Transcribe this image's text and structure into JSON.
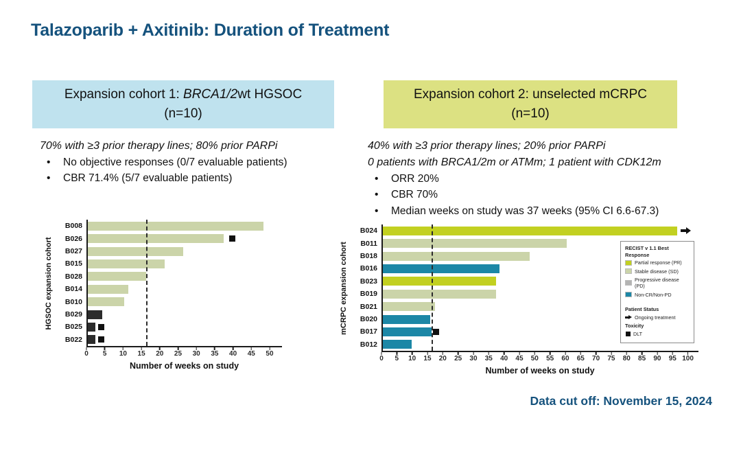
{
  "title": "Talazoparib + Axitinib: Duration of Treatment",
  "footer": "Data cut off: November 15, 2024",
  "colors": {
    "accent_blue": "#15527D",
    "cohort1_header_bg": "#BFE2EE",
    "cohort2_header_bg": "#DCE182",
    "partial_response": "#C2D021",
    "stable_disease": "#CBD4A9",
    "progressive_disease": "#B4B4B3",
    "non_cr_non_pd": "#1C87A6",
    "dark_bar": "#2C2C2C",
    "dlt_marker": "#111111"
  },
  "cohort1": {
    "header_prefix": "Expansion cohort 1: ",
    "header_italic": "BRCA1/2",
    "header_suffix": "wt HGSOC",
    "header_n": "(n=10)",
    "subtitle": "70% with ≥3 prior therapy lines; 80% prior PARPi",
    "bullet_glyph": "•",
    "bullets": [
      "No objective responses (0/7 evaluable patients)",
      "CBR 71.4% (5/7 evaluable patients)"
    ]
  },
  "cohort2": {
    "header_line1": "Expansion cohort 2: unselected mCRPC",
    "header_n": "(n=10)",
    "subtitle_lines": [
      "40% with ≥3 prior therapy lines; 20% prior PARPi",
      "0 patients with BRCA1/2m or ATMm; 1 patient with CDK12m"
    ],
    "bullet_glyph": "•",
    "bullets": [
      "ORR 20%",
      "CBR 70%",
      "Median weeks on study was 37 weeks (95% CI 6.6-67.3)"
    ]
  },
  "chart_data": [
    {
      "type": "bar",
      "orientation": "horizontal",
      "ylabel": "HGSOC expansion cohort",
      "xlabel": "Number of weeks on study",
      "xlim": [
        0,
        53
      ],
      "xticks": [
        0,
        5,
        10,
        15,
        20,
        25,
        30,
        35,
        40,
        45,
        50
      ],
      "reference_line_x": 16,
      "grid": false,
      "rows": [
        {
          "patient": "B008",
          "weeks": 48,
          "color": "stable_disease"
        },
        {
          "patient": "B026",
          "weeks": 37,
          "color": "stable_disease",
          "dlt_at": 39.5
        },
        {
          "patient": "B027",
          "weeks": 26,
          "color": "stable_disease"
        },
        {
          "patient": "B015",
          "weeks": 21,
          "color": "stable_disease"
        },
        {
          "patient": "B028",
          "weeks": 16,
          "color": "stable_disease"
        },
        {
          "patient": "B014",
          "weeks": 11,
          "color": "stable_disease"
        },
        {
          "patient": "B010",
          "weeks": 10,
          "color": "stable_disease"
        },
        {
          "patient": "B029",
          "weeks": 4,
          "color": "dark_bar"
        },
        {
          "patient": "B025",
          "weeks": 2,
          "color": "dark_bar",
          "dlt_at": 3.6
        },
        {
          "patient": "B022",
          "weeks": 2,
          "color": "dark_bar",
          "dlt_at": 3.6
        }
      ]
    },
    {
      "type": "bar",
      "orientation": "horizontal",
      "ylabel": "mCRPC expansion cohort",
      "xlabel": "Number of weeks on study",
      "xlim": [
        0,
        103
      ],
      "xticks": [
        0,
        5,
        10,
        15,
        20,
        25,
        30,
        35,
        40,
        45,
        50,
        55,
        60,
        65,
        70,
        75,
        80,
        85,
        90,
        95,
        100
      ],
      "reference_line_x": 16,
      "grid": false,
      "rows": [
        {
          "patient": "B024",
          "weeks": 96,
          "color": "partial_response",
          "ongoing": true
        },
        {
          "patient": "B011",
          "weeks": 60,
          "color": "stable_disease"
        },
        {
          "patient": "B018",
          "weeks": 48,
          "color": "stable_disease"
        },
        {
          "patient": "B016",
          "weeks": 38,
          "color": "non_cr_non_pd"
        },
        {
          "patient": "B023",
          "weeks": 37,
          "color": "partial_response"
        },
        {
          "patient": "B019",
          "weeks": 37,
          "color": "stable_disease"
        },
        {
          "patient": "B021",
          "weeks": 17,
          "color": "stable_disease"
        },
        {
          "patient": "B020",
          "weeks": 15.5,
          "color": "non_cr_non_pd"
        },
        {
          "patient": "B017",
          "weeks": 16,
          "color": "non_cr_non_pd",
          "dlt_at": 17.4
        },
        {
          "patient": "B012",
          "weeks": 9.5,
          "color": "non_cr_non_pd"
        }
      ],
      "legend": {
        "title": "RECIST v 1.1 Best Response",
        "entries": [
          {
            "label": "Partial response (PR)",
            "color_key": "partial_response"
          },
          {
            "label": "Stable disease (SD)",
            "color_key": "stable_disease"
          },
          {
            "label": "Progressive disease (PD)",
            "color_key": "progressive_disease"
          },
          {
            "label": "Non-CR/Non-PD",
            "color_key": "non_cr_non_pd"
          }
        ],
        "patient_status_title": "Patient Status",
        "ongoing_label": "Ongoing treatment",
        "toxicity_title": "Toxicity",
        "dlt_label": "DLT"
      }
    }
  ]
}
